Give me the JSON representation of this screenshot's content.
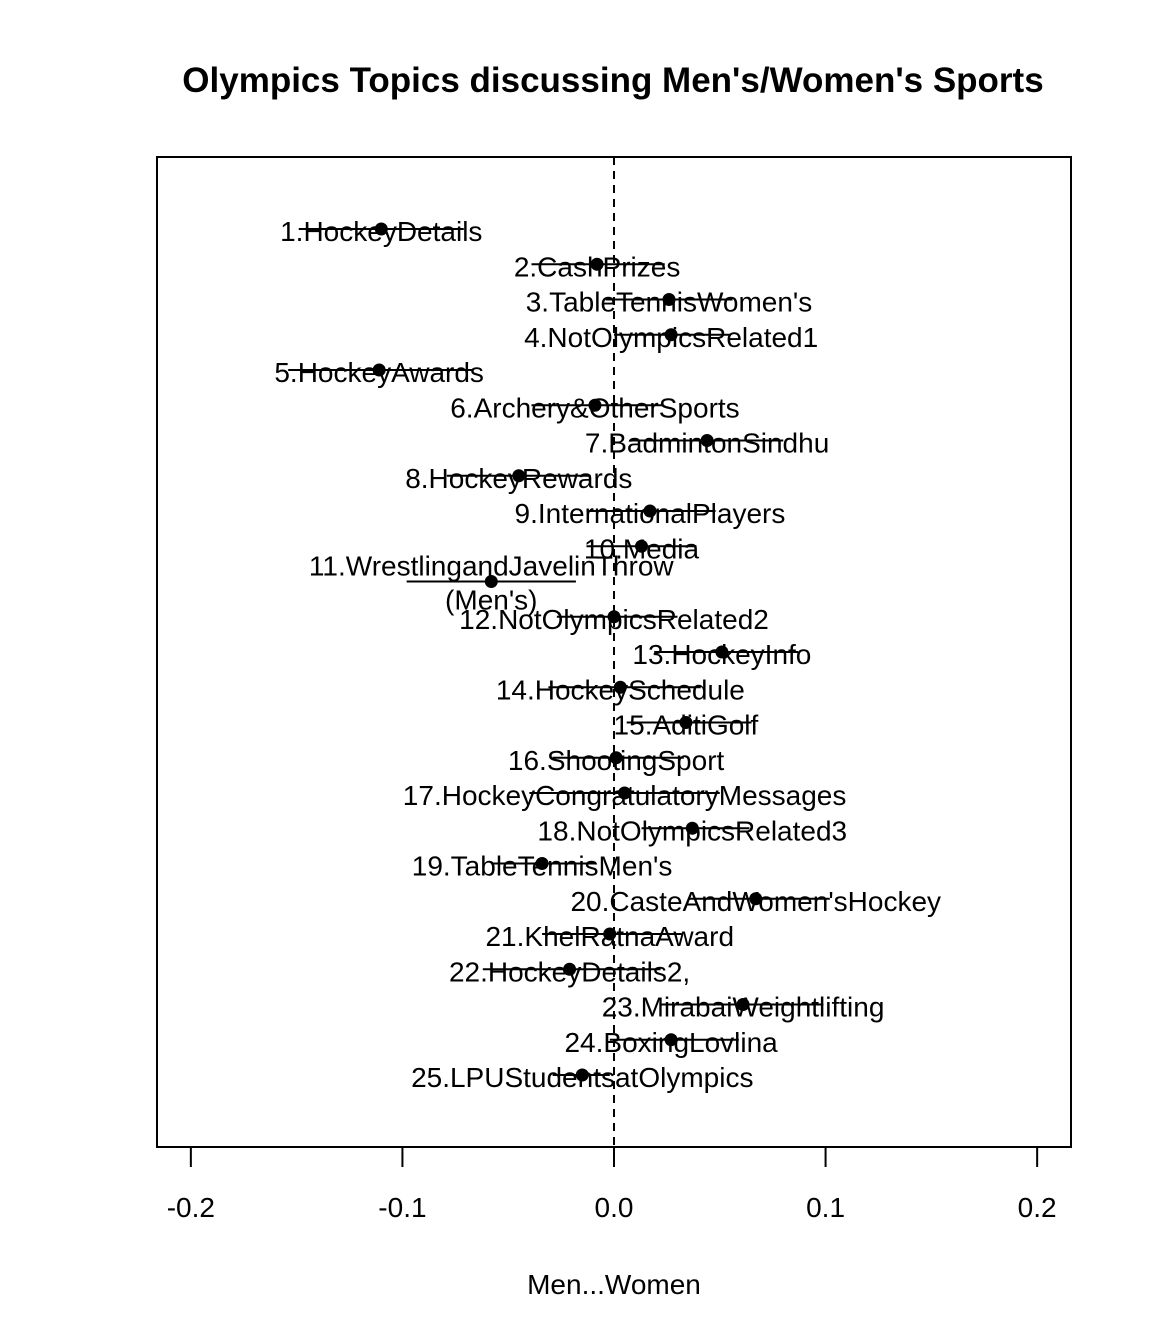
{
  "chart_data": {
    "type": "scatter",
    "title": "Olympics Topics discussing Men's/Women's Sports",
    "xlabel": "Men...Women",
    "ylabel": "",
    "xlim": [
      -0.216,
      0.216
    ],
    "xticks": [
      -0.2,
      -0.1,
      0.0,
      0.1,
      0.2
    ],
    "xtick_labels": [
      "-0.2",
      "-0.1",
      "0.0",
      "0.1",
      "0.2"
    ],
    "reference_line": 0.0,
    "grid": false,
    "legend": "none",
    "topics": [
      {
        "label": "1.HockeyDetails",
        "estimate": -0.11,
        "lower": -0.149,
        "upper": -0.071
      },
      {
        "label": "2.CashPrizes",
        "estimate": -0.008,
        "lower": -0.039,
        "upper": 0.024
      },
      {
        "label": "3.TableTennisWomen's",
        "estimate": 0.026,
        "lower": -0.004,
        "upper": 0.056
      },
      {
        "label": "4.NotOlympicsRelated1",
        "estimate": 0.027,
        "lower": 0.0,
        "upper": 0.055
      },
      {
        "label": "5.HockeyAwards",
        "estimate": -0.111,
        "lower": -0.154,
        "upper": -0.067
      },
      {
        "label": "6.Archery&OtherSports",
        "estimate": -0.009,
        "lower": -0.039,
        "upper": 0.023
      },
      {
        "label": "7.BadmintonSindhu",
        "estimate": 0.044,
        "lower": 0.008,
        "upper": 0.08
      },
      {
        "label": "8.HockeyRewards",
        "estimate": -0.045,
        "lower": -0.079,
        "upper": -0.011
      },
      {
        "label": "9.InternationalPlayers",
        "estimate": 0.017,
        "lower": -0.013,
        "upper": 0.048
      },
      {
        "label": "10.Media",
        "estimate": 0.013,
        "lower": -0.013,
        "upper": 0.039
      },
      {
        "label": "11.WrestlingandJavelinThrow\n(Men's)",
        "lines": [
          "11.WrestlingandJavelinThrow",
          "(Men's)"
        ],
        "estimate": -0.058,
        "lower": -0.098,
        "upper": -0.018
      },
      {
        "label": "12.NotOlympicsRelated2",
        "estimate": 0.0,
        "lower": -0.027,
        "upper": 0.03
      },
      {
        "label": "13.HockeyInfo",
        "estimate": 0.051,
        "lower": 0.019,
        "upper": 0.087
      },
      {
        "label": "14.HockeySchedule",
        "estimate": 0.003,
        "lower": -0.031,
        "upper": 0.041
      },
      {
        "label": "15.AditiGolf",
        "estimate": 0.034,
        "lower": 0.006,
        "upper": 0.065
      },
      {
        "label": "16.ShootingSport",
        "estimate": 0.001,
        "lower": -0.029,
        "upper": 0.033
      },
      {
        "label": "17.HockeyCongratulatoryMessages",
        "estimate": 0.005,
        "lower": -0.04,
        "upper": 0.05
      },
      {
        "label": "18.NotOlympicsRelated3",
        "estimate": 0.037,
        "lower": 0.013,
        "upper": 0.064
      },
      {
        "label": "19.TableTennisMen's",
        "estimate": -0.034,
        "lower": -0.058,
        "upper": -0.009
      },
      {
        "label": "20.CasteAndWomen'sHockey",
        "estimate": 0.067,
        "lower": 0.035,
        "upper": 0.102
      },
      {
        "label": "21.KhelRatnaAward",
        "estimate": -0.002,
        "lower": -0.034,
        "upper": 0.032
      },
      {
        "label": "22.HockeyDetails2,",
        "estimate": -0.021,
        "lower": -0.062,
        "upper": 0.022
      },
      {
        "label": "23.MirabaiWeightlifting",
        "estimate": 0.061,
        "lower": 0.022,
        "upper": 0.099
      },
      {
        "label": "24.BoxingLovlina",
        "estimate": 0.027,
        "lower": -0.002,
        "upper": 0.059
      },
      {
        "label": "25.LPUStudentsatOlympics",
        "estimate": -0.015,
        "lower": -0.029,
        "upper": -0.002
      }
    ]
  }
}
